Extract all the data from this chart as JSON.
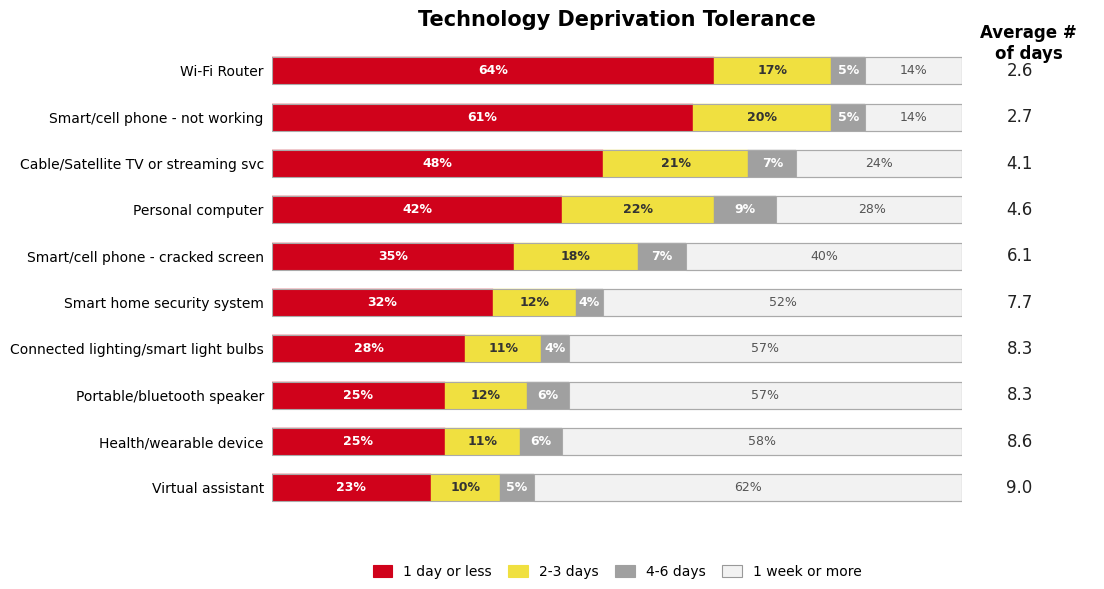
{
  "title": "Technology Deprivation Tolerance",
  "categories": [
    "Wi-Fi Router",
    "Smart/cell phone - not working",
    "Cable/Satellite TV or streaming svc",
    "Personal computer",
    "Smart/cell phone - cracked screen",
    "Smart home security system",
    "Connected lighting/smart light bulbs",
    "Portable/bluetooth speaker",
    "Health/wearable device",
    "Virtual assistant"
  ],
  "avg_days": [
    2.6,
    2.7,
    4.1,
    4.6,
    6.1,
    7.7,
    8.3,
    8.3,
    8.6,
    9.0
  ],
  "data": {
    "1 day or less": [
      64,
      61,
      48,
      42,
      35,
      32,
      28,
      25,
      25,
      23
    ],
    "2-3 days": [
      17,
      20,
      21,
      22,
      18,
      12,
      11,
      12,
      11,
      10
    ],
    "4-6 days": [
      5,
      5,
      7,
      9,
      7,
      4,
      4,
      6,
      6,
      5
    ],
    "1 week or more": [
      14,
      14,
      24,
      28,
      40,
      52,
      57,
      57,
      58,
      62
    ]
  },
  "colors": {
    "1 day or less": "#D0021B",
    "2-3 days": "#F0E040",
    "4-6 days": "#A0A0A0",
    "1 week or more": "#F2F2F2"
  },
  "legend_order": [
    "1 day or less",
    "2-3 days",
    "4-6 days",
    "1 week or more"
  ],
  "bar_edge_color": "#AAAAAA",
  "avg_days_label": "Average #\nof days",
  "background_color": "#FFFFFF",
  "title_fontsize": 15,
  "label_fontsize": 9,
  "category_fontsize": 10,
  "avg_fontsize": 12,
  "legend_fontsize": 10,
  "bar_height": 0.58,
  "xlim": 100
}
